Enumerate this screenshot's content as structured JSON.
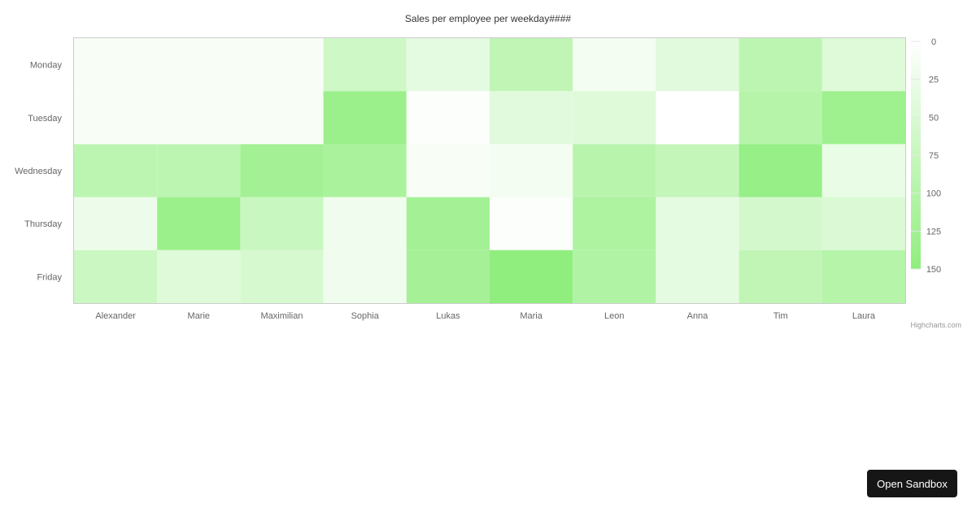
{
  "chart_data": {
    "type": "heatmap",
    "title": "Sales per employee per weekday####",
    "x_categories": [
      "Alexander",
      "Marie",
      "Maximilian",
      "Sophia",
      "Lukas",
      "Maria",
      "Leon",
      "Anna",
      "Tim",
      "Laura"
    ],
    "y_categories": [
      "Monday",
      "Tuesday",
      "Wednesday",
      "Thursday",
      "Friday"
    ],
    "values": [
      [
        10,
        10,
        10,
        65,
        35,
        85,
        15,
        40,
        90,
        45
      ],
      [
        10,
        10,
        10,
        135,
        5,
        40,
        45,
        0,
        100,
        130
      ],
      [
        90,
        90,
        125,
        115,
        10,
        15,
        95,
        80,
        140,
        30
      ],
      [
        25,
        135,
        75,
        20,
        125,
        5,
        110,
        35,
        60,
        50
      ],
      [
        70,
        45,
        55,
        20,
        120,
        150,
        105,
        35,
        85,
        100
      ]
    ],
    "colorAxis": {
      "min": 0,
      "max": 150,
      "minColor": "#ffffff",
      "maxColor": "#90ee7e",
      "ticks": [
        0,
        25,
        50,
        75,
        100,
        125,
        150
      ]
    },
    "legend": "right"
  },
  "credits": "Highcharts.com",
  "sandbox_label": "Open Sandbox"
}
